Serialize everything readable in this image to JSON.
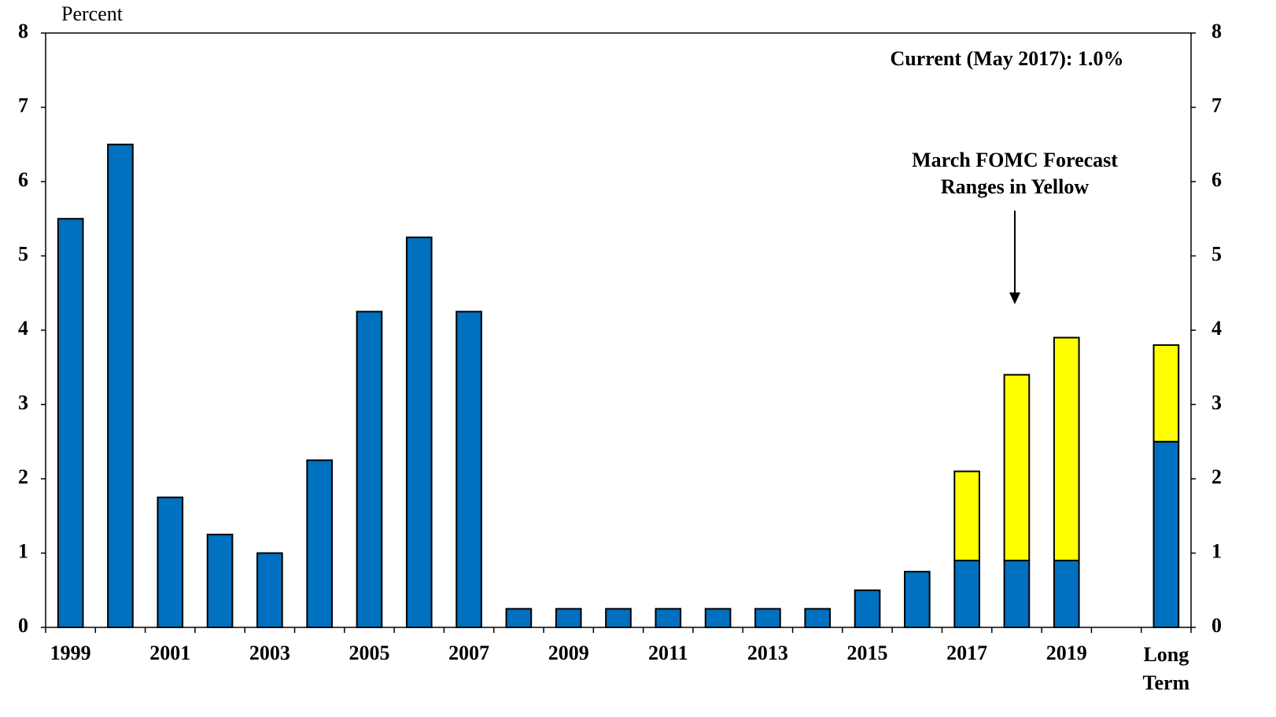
{
  "chart_data": {
    "type": "stacked_bar",
    "y_label": "Percent",
    "categories": [
      "1999",
      null,
      "2001",
      null,
      "2003",
      null,
      "2005",
      null,
      "2007",
      null,
      "2009",
      null,
      "2011",
      null,
      "2013",
      null,
      "2015",
      null,
      "2017",
      null,
      "2019",
      null,
      "Long Term"
    ],
    "series": [
      {
        "color": "#0070c0",
        "values": [
          5.5,
          6.5,
          1.75,
          1.25,
          1.0,
          2.25,
          4.25,
          5.25,
          4.25,
          0.25,
          0.25,
          0.25,
          0.25,
          0.25,
          0.25,
          0.25,
          0.5,
          0.75,
          0.9,
          0.9,
          0.9,
          null,
          2.5
        ]
      },
      {
        "color": "#ffff00",
        "values": [
          null,
          null,
          null,
          null,
          null,
          null,
          null,
          null,
          null,
          null,
          null,
          null,
          null,
          null,
          null,
          null,
          null,
          null,
          1.2,
          2.5,
          3.0,
          null,
          1.3
        ]
      }
    ],
    "ylim": [
      0,
      8
    ],
    "yticks": [
      0,
      1,
      2,
      3,
      4,
      5,
      6,
      7,
      8
    ],
    "y2lim": [
      0,
      8
    ],
    "y2ticks": [
      0,
      1,
      2,
      3,
      4,
      5,
      6,
      7,
      8
    ],
    "annotations": {
      "current": {
        "text": "Current (May 2017): 1.0%",
        "color": "#ff0000"
      },
      "forecast": [
        "March FOMC Forecast",
        "Ranges in Yellow"
      ]
    }
  }
}
